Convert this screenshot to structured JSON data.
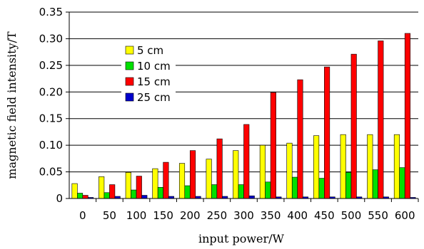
{
  "chart_data": {
    "type": "bar",
    "xlabel": "input power/W",
    "ylabel": "magnetic field intensity/T",
    "ylim": [
      0,
      0.35
    ],
    "yticks": [
      "0",
      "0.05",
      "0.10",
      "0.15",
      "0.20",
      "0.25",
      "0.30",
      "0.35"
    ],
    "grid": "horizontal",
    "legend_position": "upper-left",
    "categories": [
      "0",
      "50",
      "100",
      "150",
      "200",
      "250",
      "300",
      "350",
      "400",
      "450",
      "500",
      "550",
      "600"
    ],
    "series": [
      {
        "name": "5 cm",
        "color": "#ffff00",
        "values": [
          0.028,
          0.041,
          0.049,
          0.056,
          0.066,
          0.074,
          0.09,
          0.1,
          0.104,
          0.118,
          0.12,
          0.12,
          0.12
        ]
      },
      {
        "name": "10 cm",
        "color": "#00e000",
        "values": [
          0.01,
          0.011,
          0.016,
          0.021,
          0.024,
          0.026,
          0.026,
          0.031,
          0.04,
          0.038,
          0.049,
          0.054,
          0.058
        ]
      },
      {
        "name": "15 cm",
        "color": "#ff0000",
        "values": [
          0.006,
          0.026,
          0.042,
          0.068,
          0.09,
          0.112,
          0.139,
          0.199,
          0.223,
          0.247,
          0.271,
          0.296,
          0.31
        ]
      },
      {
        "name": "25 cm",
        "color": "#0000cc",
        "values": [
          0.002,
          0.004,
          0.006,
          0.004,
          0.004,
          0.004,
          0.005,
          0.003,
          0.003,
          0.003,
          0.003,
          0.003,
          0.002
        ]
      }
    ]
  }
}
